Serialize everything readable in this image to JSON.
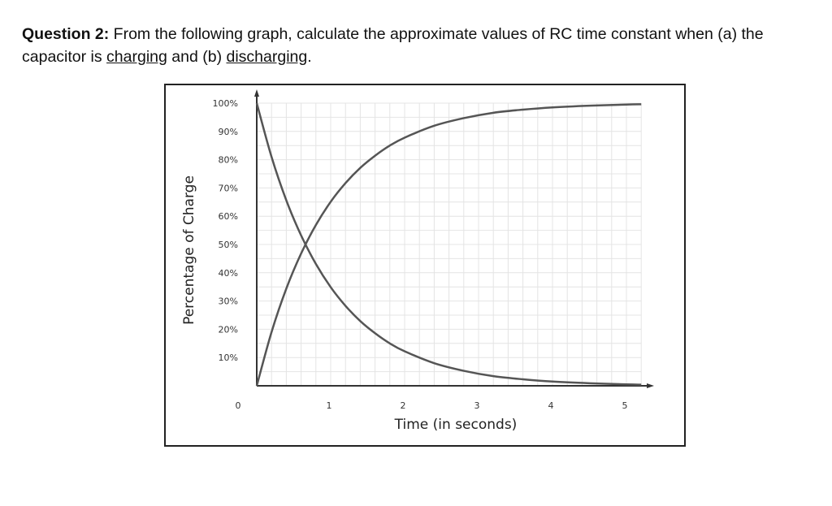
{
  "question": {
    "label": "Question 2:",
    "text_before": " From the following graph, calculate the approximate values of RC time constant when (a) the capacitor is ",
    "charging": "charging",
    "text_middle": " and (b) ",
    "discharging": "discharging",
    "text_end": "."
  },
  "chart_data": {
    "type": "line",
    "title": "",
    "xlabel": "Time (in seconds)",
    "ylabel": "Percentage of Charge",
    "xlim": [
      0,
      5.2
    ],
    "ylim": [
      0,
      100
    ],
    "grid": true,
    "x_ticks": [
      "0",
      "1",
      "2",
      "3",
      "4",
      "5"
    ],
    "y_ticks": [
      "10%",
      "20%",
      "30%",
      "40%",
      "50%",
      "60%",
      "70%",
      "80%",
      "90%",
      "100%"
    ],
    "x": [
      0,
      0.2,
      0.4,
      0.6,
      0.8,
      1.0,
      1.2,
      1.4,
      1.6,
      1.8,
      2.0,
      2.4,
      2.8,
      3.2,
      3.6,
      4.0,
      4.5,
      5.0,
      5.2
    ],
    "series": [
      {
        "name": "charging",
        "values": [
          0,
          19.0,
          34.4,
          46.8,
          56.9,
          65.1,
          71.7,
          77.1,
          81.4,
          85.0,
          87.8,
          92.0,
          94.7,
          96.6,
          97.7,
          98.5,
          99.1,
          99.5,
          99.6
        ]
      },
      {
        "name": "discharging",
        "values": [
          100,
          81.0,
          65.6,
          53.2,
          43.1,
          34.9,
          28.3,
          22.9,
          18.6,
          15.0,
          12.2,
          8.0,
          5.3,
          3.4,
          2.3,
          1.5,
          0.9,
          0.5,
          0.4
        ]
      }
    ],
    "line_color": "#555555"
  }
}
